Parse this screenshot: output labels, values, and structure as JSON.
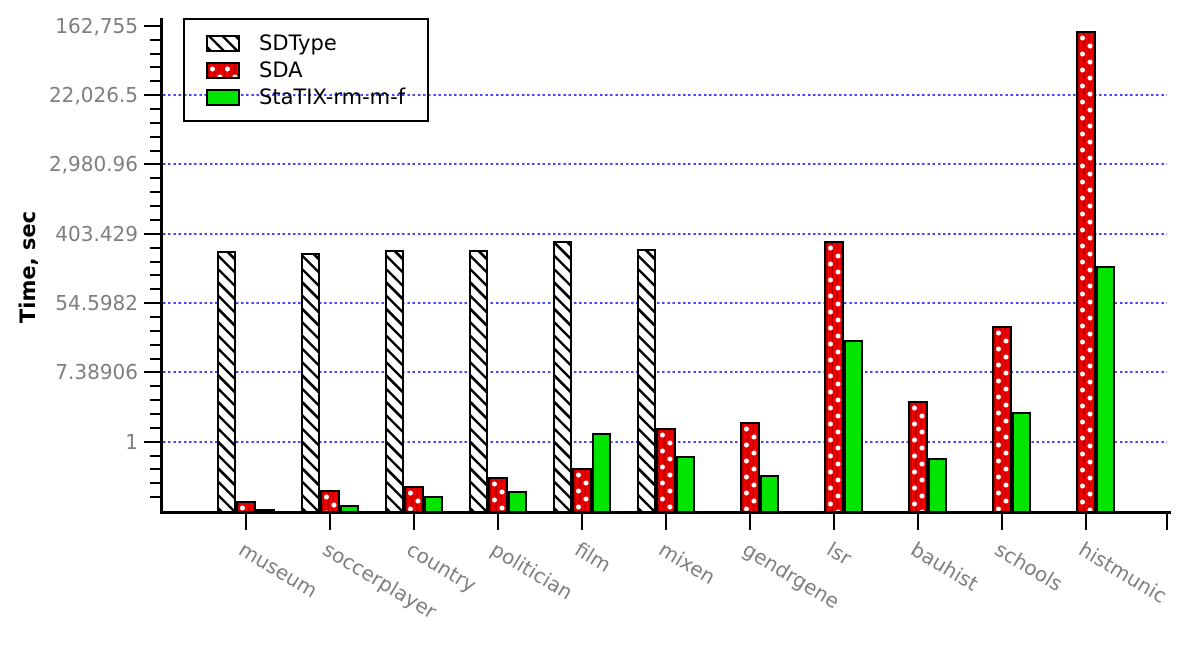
{
  "chart_data": {
    "type": "bar",
    "title": "",
    "xlabel": "",
    "ylabel": "Time, sec",
    "y_scale": "log, major ticks at powers of e^2",
    "ylim": [
      0.13,
      162755
    ],
    "grid": "horizontal blue dotted lines at major ticks",
    "legend_position": "top-left",
    "categories": [
      "museum",
      "soccerplayer",
      "country",
      "politician",
      "film",
      "mixen",
      "gendrgene",
      "lsr",
      "bauhist",
      "schools",
      "histmunic"
    ],
    "series": [
      {
        "id": "sdtype",
        "name": "SDType",
        "fill": "#ffffff",
        "pattern": "black diagonal hatch on white",
        "values": [
          247,
          233,
          252,
          252,
          327,
          260,
          null,
          null,
          null,
          null,
          null
        ]
      },
      {
        "id": "sda",
        "name": "SDA",
        "fill": "#ff0000",
        "pattern": "red with staggered white dots and dark red vertical stripes",
        "values": [
          0.18,
          0.25,
          0.28,
          0.36,
          0.47,
          1.47,
          1.75,
          330,
          3.2,
          28.5,
          141000
        ]
      },
      {
        "id": "statix",
        "name": "StaTIX-rm-m-f",
        "fill": "#00e400",
        "pattern": "solid green",
        "values": [
          0.145,
          0.16,
          0.21,
          0.24,
          1.27,
          0.66,
          0.38,
          18.8,
          0.63,
          2.38,
          160
        ]
      }
    ],
    "y_ticks": [
      {
        "label": "162,755",
        "value": 162754.79
      },
      {
        "label": "22,026.5",
        "value": 22026.47
      },
      {
        "label": "2,980.96",
        "value": 2980.96
      },
      {
        "label": "403.429",
        "value": 403.429
      },
      {
        "label": "54.5982",
        "value": 54.5982
      },
      {
        "label": "7.38906",
        "value": 7.38906
      },
      {
        "label": "1",
        "value": 1
      }
    ],
    "colors": {
      "grid": "#3030ff",
      "tick_label": "#7f7f7f",
      "axis": "#000000",
      "sdtype_fill": "#ffffff",
      "sda_fill": "#ff0000",
      "statix_fill": "#00e400",
      "hatch": "#000000"
    }
  }
}
